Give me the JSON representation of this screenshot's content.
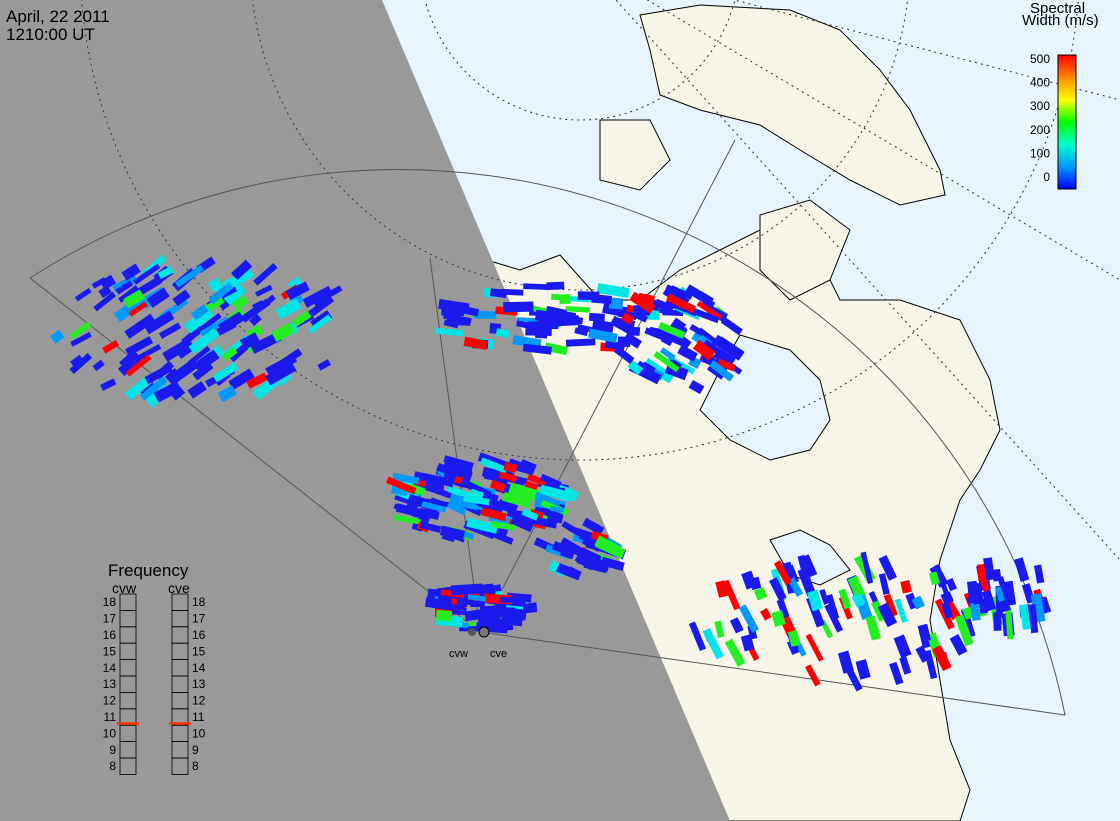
{
  "header": {
    "date": "April, 22 2011",
    "time": "1210:00 UT"
  },
  "colorbar": {
    "title_line1": "Spectral",
    "title_line2": "Width (m/s)",
    "ticks": [
      "500",
      "400",
      "300",
      "200",
      "100",
      "0"
    ],
    "colors": [
      "#ff0000",
      "#ff8800",
      "#ffff00",
      "#00ff00",
      "#00ffcc",
      "#0099ff",
      "#0000ff"
    ]
  },
  "frequency_panel": {
    "title": "Frequency",
    "radars": [
      {
        "name": "cvw",
        "value_mhz": 10.6
      },
      {
        "name": "cve",
        "value_mhz": 10.6
      }
    ],
    "scale": [
      "18",
      "17",
      "16",
      "15",
      "14",
      "13",
      "12",
      "11",
      "10",
      "9",
      "8"
    ],
    "indicator_color": "#ff3300"
  },
  "sites": {
    "west": "cvw",
    "east": "cve"
  },
  "colors": {
    "night": "#999999",
    "land": "#f7f5e8",
    "ocean": "#e8f4fb",
    "blue": "#1a1aee",
    "light_blue": "#0099ff",
    "cyan": "#00e6e6",
    "green": "#22ee22",
    "red": "#ff0000"
  }
}
